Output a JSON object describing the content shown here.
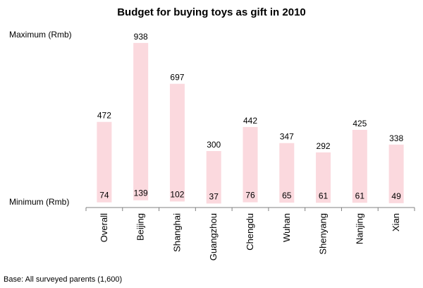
{
  "chart_data": {
    "type": "bar",
    "subtype": "floating-range",
    "title": "Budget for buying toys as gift in 2010",
    "max_label": "Maximum  (Rmb)",
    "min_label": "Minimum  (Rmb)",
    "categories": [
      "Overall",
      "Beijing",
      "Shanghai",
      "Guangzhou",
      "Chengdu",
      "Wuhan",
      "Shenyang",
      "Nanjing",
      "Xian"
    ],
    "series": [
      {
        "name": "Maximum  (Rmb)",
        "values": [
          472,
          938,
          697,
          300,
          442,
          347,
          292,
          425,
          338
        ]
      },
      {
        "name": "Minimum  (Rmb)",
        "values": [
          74,
          139,
          102,
          37,
          76,
          65,
          61,
          61,
          49
        ]
      }
    ],
    "bar_color": "#fbd9de",
    "grid": false,
    "footnote": "Base: All surveyed parents (1,600)"
  }
}
